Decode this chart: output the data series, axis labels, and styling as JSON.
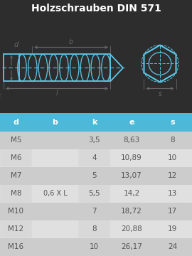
{
  "title": "Holzschrauben DIN 571",
  "title_bg": "#2d2d2d",
  "title_color": "#ffffff",
  "header_bg": "#4db8d8",
  "header_color": "#ffffff",
  "row_bg_dark": "#cccccc",
  "row_bg_light": "#e0e0e0",
  "cell_bg_white": "#e8e8e8",
  "text_color": "#555555",
  "diagram_bg": "#f5f5f5",
  "screw_color": "#5bc8e8",
  "dim_color": "#666666",
  "columns": [
    "d",
    "b",
    "k",
    "e",
    "s"
  ],
  "rows": [
    [
      "M5",
      "",
      "3,5",
      "8,63",
      "8"
    ],
    [
      "M6",
      "",
      "4",
      "10,89",
      "10"
    ],
    [
      "M7",
      "",
      "5",
      "13,07",
      "12"
    ],
    [
      "M8",
      "0,6 X L",
      "5,5",
      "14,2",
      "13"
    ],
    [
      "M10",
      "",
      "7",
      "18,72",
      "17"
    ],
    [
      "M12",
      "",
      "8",
      "20,88",
      "19"
    ],
    [
      "M16",
      "",
      "10",
      "26,17",
      "24"
    ]
  ]
}
